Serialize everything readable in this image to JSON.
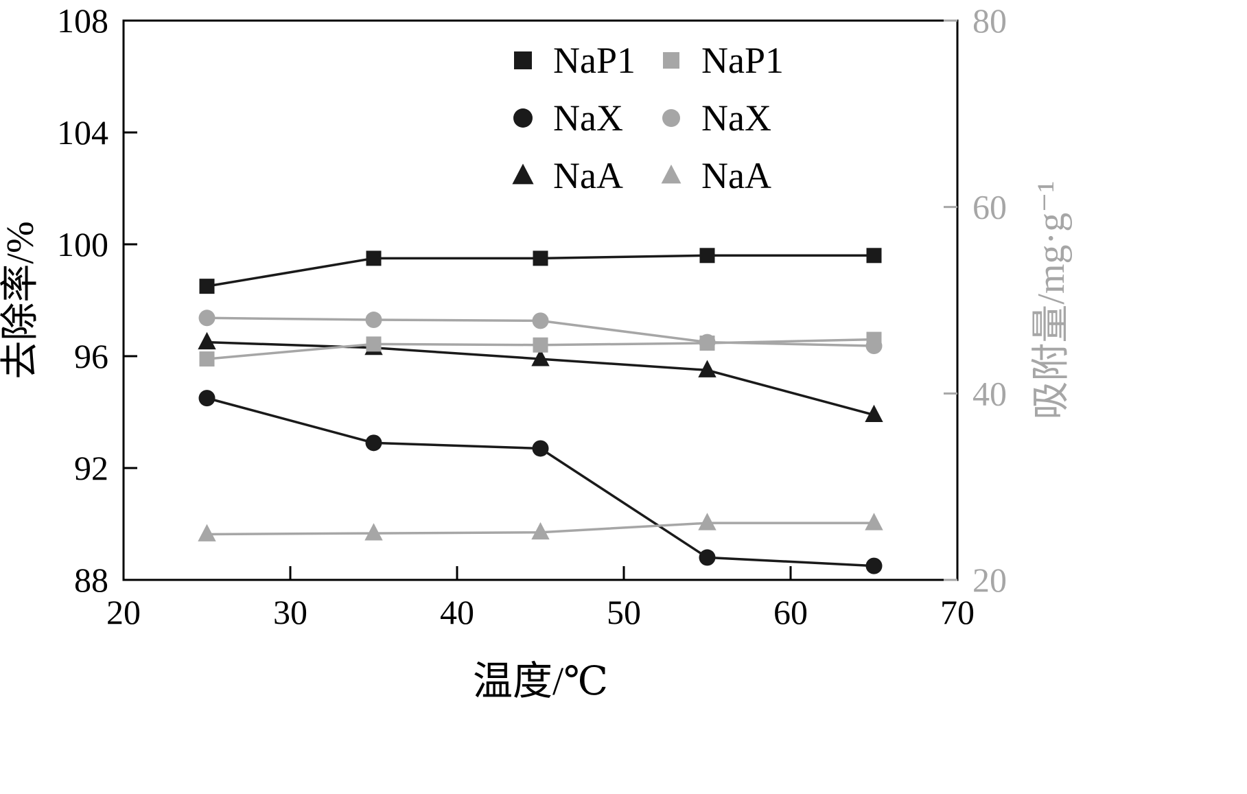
{
  "chart_data": {
    "type": "line",
    "title": "",
    "xlabel": "温度/℃",
    "ylabel_left": "去除率/%",
    "ylabel_right": "吸附量/mg·g⁻¹",
    "x": [
      25,
      35,
      45,
      55,
      65
    ],
    "xlim": [
      20,
      70
    ],
    "xticks": [
      20,
      30,
      40,
      50,
      60,
      70
    ],
    "ylim_left": [
      88,
      108
    ],
    "yticks_left": [
      88,
      92,
      96,
      100,
      104,
      108
    ],
    "ylim_right": [
      20,
      80
    ],
    "yticks_right": [
      20,
      40,
      60,
      80
    ],
    "grid": false,
    "legend_position": "top-center",
    "legend_labels": [
      "NaP1",
      "NaX",
      "NaA",
      "NaP1",
      "NaX",
      "NaA"
    ],
    "colors": {
      "left_series": "#1a1a1a",
      "right_series": "#a6a6a6",
      "right_axis": "#a6a6a6",
      "left_axis": "#000000",
      "background": "#ffffff"
    },
    "series": [
      {
        "name": "NaP1",
        "axis": "left",
        "marker": "square",
        "values": [
          98.5,
          99.5,
          99.5,
          99.6,
          99.6
        ]
      },
      {
        "name": "NaX",
        "axis": "left",
        "marker": "circle",
        "values": [
          94.5,
          92.9,
          92.7,
          88.8,
          88.5
        ]
      },
      {
        "name": "NaA",
        "axis": "left",
        "marker": "triangle",
        "values": [
          96.5,
          96.3,
          95.9,
          95.5,
          93.9
        ]
      },
      {
        "name": "NaP1",
        "axis": "right",
        "marker": "square",
        "values": [
          43.7,
          45.3,
          45.2,
          45.4,
          45.8
        ]
      },
      {
        "name": "NaX",
        "axis": "right",
        "marker": "circle",
        "values": [
          48.1,
          47.9,
          47.8,
          45.5,
          45.1
        ]
      },
      {
        "name": "NaA",
        "axis": "right",
        "marker": "triangle",
        "values": [
          24.9,
          25.0,
          25.1,
          26.1,
          26.1
        ]
      }
    ]
  }
}
